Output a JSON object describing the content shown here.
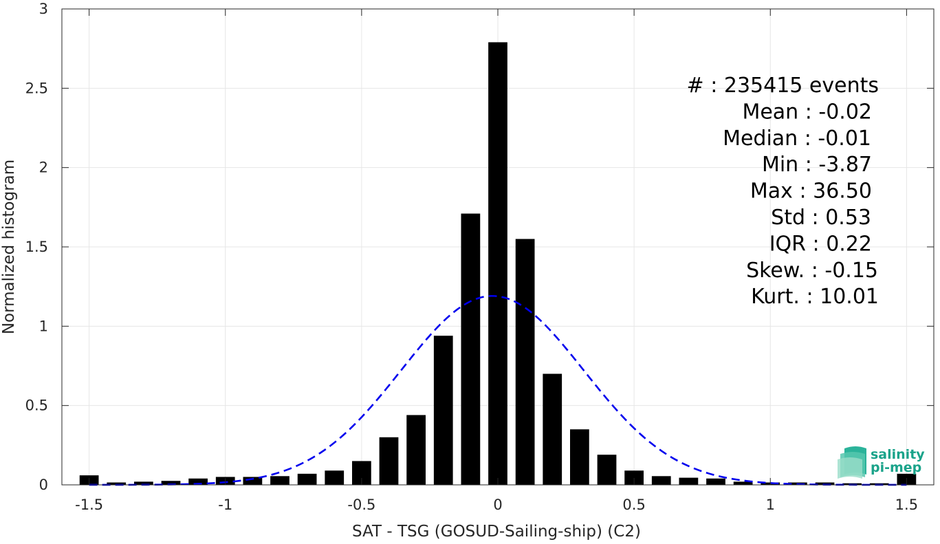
{
  "chart_data": {
    "type": "bar",
    "xlabel": "SAT - TSG (GOSUD-Sailing-ship) (C2)",
    "ylabel": "Normalized histogram",
    "xlim": [
      -1.6,
      1.6
    ],
    "ylim": [
      0,
      3
    ],
    "xticks": [
      -1.5,
      -1,
      -0.5,
      0,
      0.5,
      1,
      1.5
    ],
    "xtick_labels": [
      "-1.5",
      "-1",
      "-0.5",
      "0",
      "0.5",
      "1",
      "1.5"
    ],
    "yticks": [
      0,
      0.5,
      1,
      1.5,
      2,
      2.5,
      3
    ],
    "ytick_labels": [
      "0",
      "0.5",
      "1",
      "1.5",
      "2",
      "2.5",
      "3"
    ],
    "grid": true,
    "bar_width": 0.07,
    "bar_color": "#000000",
    "curve_color": "#0000ee",
    "bins": [
      {
        "x": -1.5,
        "y": 0.06
      },
      {
        "x": -1.4,
        "y": 0.015
      },
      {
        "x": -1.3,
        "y": 0.02
      },
      {
        "x": -1.2,
        "y": 0.025
      },
      {
        "x": -1.1,
        "y": 0.04
      },
      {
        "x": -1.0,
        "y": 0.05
      },
      {
        "x": -0.9,
        "y": 0.05
      },
      {
        "x": -0.8,
        "y": 0.055
      },
      {
        "x": -0.7,
        "y": 0.07
      },
      {
        "x": -0.6,
        "y": 0.09
      },
      {
        "x": -0.5,
        "y": 0.15
      },
      {
        "x": -0.4,
        "y": 0.3
      },
      {
        "x": -0.3,
        "y": 0.44
      },
      {
        "x": -0.2,
        "y": 0.94
      },
      {
        "x": -0.1,
        "y": 1.71
      },
      {
        "x": 0.0,
        "y": 2.79
      },
      {
        "x": 0.1,
        "y": 1.55
      },
      {
        "x": 0.2,
        "y": 0.7
      },
      {
        "x": 0.3,
        "y": 0.35
      },
      {
        "x": 0.4,
        "y": 0.19
      },
      {
        "x": 0.5,
        "y": 0.09
      },
      {
        "x": 0.6,
        "y": 0.055
      },
      {
        "x": 0.7,
        "y": 0.045
      },
      {
        "x": 0.8,
        "y": 0.04
      },
      {
        "x": 0.9,
        "y": 0.02
      },
      {
        "x": 1.0,
        "y": 0.015
      },
      {
        "x": 1.1,
        "y": 0.015
      },
      {
        "x": 1.2,
        "y": 0.015
      },
      {
        "x": 1.3,
        "y": 0.01
      },
      {
        "x": 1.4,
        "y": 0.01
      },
      {
        "x": 1.5,
        "y": 0.07
      }
    ],
    "gaussian_fit": {
      "mean": -0.02,
      "std": 0.335,
      "x_range": [
        -1.5,
        1.5
      ]
    },
    "stats": [
      {
        "label": "#  ",
        "value": "235415 events"
      },
      {
        "label": "Mean",
        "value": "-0.02"
      },
      {
        "label": "Median",
        "value": "-0.01"
      },
      {
        "label": "Min",
        "value": "-3.87"
      },
      {
        "label": "Max",
        "value": "36.50"
      },
      {
        "label": "Std",
        "value": "0.53"
      },
      {
        "label": "IQR",
        "value": "0.22"
      },
      {
        "label": "Skew.",
        "value": "-0.15"
      },
      {
        "label": "Kurt.",
        "value": "10.01"
      }
    ]
  },
  "logo": {
    "line1": "salinity",
    "line2": "pi-mep"
  }
}
